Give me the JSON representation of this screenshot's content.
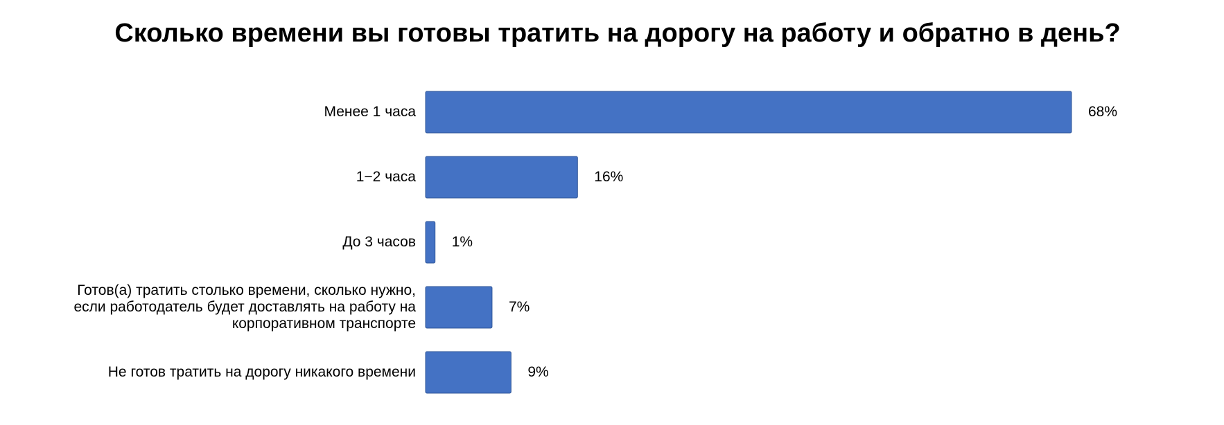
{
  "chart_data": {
    "type": "bar",
    "orientation": "horizontal",
    "title": "Сколько времени вы готовы тратить на дорогу на работу и обратно в день?",
    "categories": [
      "Менее 1 часа",
      "1−2 часа",
      "До 3 часов",
      "Готов(а) тратить столько времени, сколько нужно, если работодатель будет доставлять на работу на корпоративном транспорте",
      "Не готов тратить на дорогу никакого времени"
    ],
    "category_lines": [
      [
        "Менее 1 часа"
      ],
      [
        "1−2 часа"
      ],
      [
        "До 3 часов"
      ],
      [
        "Готов(а) тратить столько времени, сколько нужно,",
        "если работодатель будет доставлять на работу на",
        "корпоративном транспорте"
      ],
      [
        "Не готов тратить на дорогу никакого времени"
      ]
    ],
    "values": [
      68,
      16,
      1,
      7,
      9
    ],
    "value_labels": [
      "68%",
      "16%",
      "1%",
      "7%",
      "9%"
    ],
    "xlim": [
      0,
      68
    ],
    "grid": false,
    "legend": "none",
    "bar_color": "#4472C4",
    "bar_edge_color": "#2F5597"
  }
}
